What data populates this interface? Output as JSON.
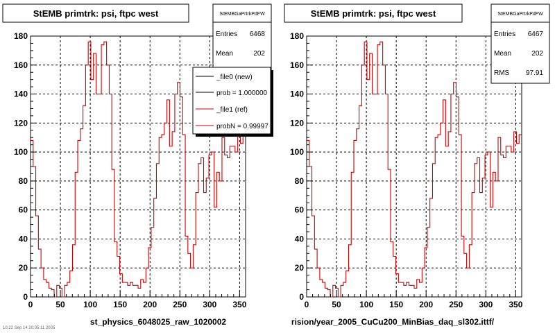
{
  "colors": {
    "hist_red": "#cc0000",
    "frame": "#000000",
    "grid": "#000000",
    "background": "#ffffff"
  },
  "footer": "10:22 Sep 14 20:05:11 2005",
  "chart_data": [
    {
      "type": "line",
      "title": "StEMB primtrk: psi, ftpc west",
      "xlabel": "st_physics_6048025_raw_1020002",
      "xlim": [
        0,
        360
      ],
      "ylim": [
        0,
        180
      ],
      "x_ticks": [
        "0",
        "50",
        "100",
        "150",
        "200",
        "250",
        "300",
        "350"
      ],
      "y_ticks": [
        "0",
        "20",
        "40",
        "60",
        "80",
        "100",
        "120",
        "140",
        "160",
        "180"
      ],
      "grid": true,
      "stats": {
        "header": "StEMBGaPrtrkPdFW",
        "rows": [
          {
            "label": "Entries",
            "value": "6468"
          },
          {
            "label": "Mean",
            "value": "202"
          }
        ]
      },
      "legend": {
        "position": "top-right",
        "entries": [
          {
            "label": "_file0 (new)",
            "color": "#000000"
          },
          {
            "label": "prob = 1.000000",
            "color": "#000000"
          },
          {
            "label": "_file1 (ref)",
            "color": "#cc0000"
          },
          {
            "label": "probN = 0.99997",
            "color": "#cc0000"
          }
        ]
      },
      "series": [
        {
          "values": [
            108,
            90,
            56,
            33,
            20,
            12,
            10,
            6,
            5,
            0,
            8,
            6,
            0,
            8,
            10,
            18,
            36,
            86,
            108,
            116,
            132,
            160,
            176,
            150,
            168,
            140,
            140,
            174,
            176,
            160,
            140,
            88,
            38,
            28,
            16,
            10,
            10,
            8,
            10,
            8,
            8,
            6,
            12,
            10,
            20,
            34,
            48,
            68,
            92,
            110,
            112,
            120,
            136,
            104,
            114,
            140,
            148,
            138,
            112,
            42,
            30,
            20,
            36,
            72,
            92,
            96,
            72,
            82,
            98,
            100,
            62,
            86,
            80,
            110,
            98,
            96,
            104,
            104,
            100,
            114,
            106,
            112
          ]
        }
      ]
    },
    {
      "type": "line",
      "title": "StEMB primtrk: psi, ftpc west",
      "xlabel": "rision/year_2005_CuCu200_MinBias_daq_sl302.ittf/",
      "xlim": [
        0,
        360
      ],
      "ylim": [
        0,
        180
      ],
      "x_ticks": [
        "0",
        "50",
        "100",
        "150",
        "200",
        "250",
        "300",
        "350"
      ],
      "y_ticks": [
        "0",
        "20",
        "40",
        "60",
        "80",
        "100",
        "120",
        "140",
        "160",
        "180"
      ],
      "grid": true,
      "stats": {
        "header": "StEMBGaPrtrkPdFW",
        "rows": [
          {
            "label": "Entries",
            "value": "6467"
          },
          {
            "label": "Mean",
            "value": "202"
          },
          {
            "label": "RMS",
            "value": "97.91"
          }
        ]
      },
      "series": [
        {
          "values": [
            108,
            90,
            56,
            33,
            20,
            12,
            10,
            6,
            5,
            0,
            8,
            6,
            0,
            8,
            10,
            18,
            36,
            86,
            108,
            116,
            132,
            160,
            176,
            150,
            168,
            140,
            140,
            174,
            176,
            160,
            140,
            88,
            38,
            28,
            16,
            10,
            10,
            8,
            10,
            8,
            8,
            6,
            12,
            10,
            20,
            34,
            48,
            68,
            92,
            110,
            112,
            120,
            136,
            104,
            114,
            140,
            148,
            138,
            112,
            42,
            30,
            20,
            36,
            72,
            92,
            96,
            72,
            82,
            98,
            100,
            62,
            86,
            80,
            110,
            98,
            96,
            104,
            104,
            100,
            114,
            106,
            112
          ]
        }
      ]
    }
  ]
}
